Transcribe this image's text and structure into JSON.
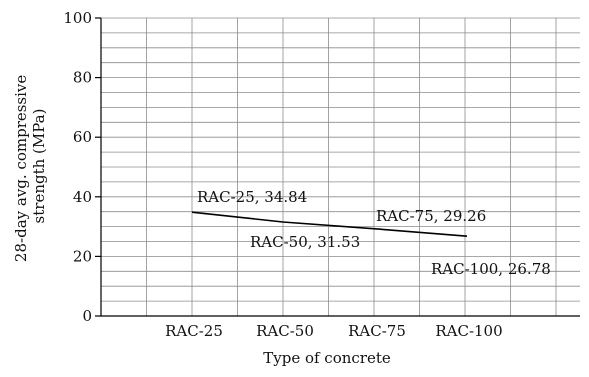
{
  "chart_data": {
    "type": "line",
    "title": "",
    "xlabel": "Type of concrete",
    "ylabel_lines": [
      "28-day avg. compressive",
      "strength (MPa)"
    ],
    "categories": [
      "RAC-25",
      "RAC-50",
      "RAC-75",
      "RAC-100"
    ],
    "series": [
      {
        "values": [
          34.84,
          31.53,
          29.26,
          26.78
        ]
      }
    ],
    "data_labels": [
      "RAC-25, 34.84",
      "RAC-50, 31.53",
      "RAC-75, 29.26",
      "RAC-100, 26.78"
    ],
    "ylim": [
      0,
      100
    ],
    "yticks": [
      "0",
      "20",
      "40",
      "60",
      "80",
      "100"
    ],
    "grid": true,
    "legend": "none",
    "colors": {
      "line": "#000000",
      "grid": "#8c8c8c",
      "axis": "#000000"
    }
  }
}
